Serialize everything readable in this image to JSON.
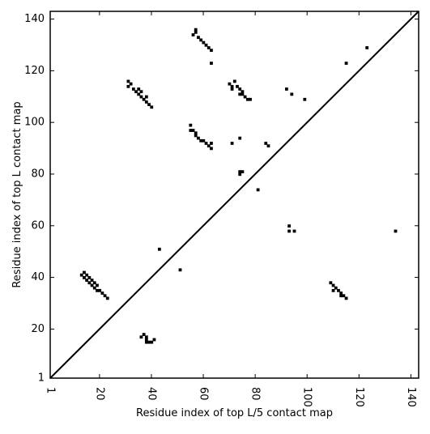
{
  "chart_data": {
    "type": "scatter",
    "title": "",
    "xlabel": "Residue index of top L/5 contact map",
    "ylabel": "Residue index of top L contact map",
    "xlim": [
      1,
      143
    ],
    "ylim": [
      1,
      143
    ],
    "x_ticks": [
      1,
      20,
      40,
      60,
      80,
      100,
      120,
      140
    ],
    "y_ticks": [
      1,
      20,
      40,
      60,
      80,
      100,
      120,
      140
    ],
    "x_tick_labels": [
      "1",
      "20",
      "40",
      "60",
      "80",
      "100",
      "120",
      "140"
    ],
    "y_tick_labels": [
      "1",
      "20",
      "40",
      "60",
      "80",
      "100",
      "120",
      "140"
    ],
    "x_tick_label_rotation": 90,
    "marker": "square",
    "point_color": "#000000",
    "diagonal_line": true,
    "grid": false,
    "points": [
      [
        13,
        41
      ],
      [
        14,
        40
      ],
      [
        14,
        42
      ],
      [
        15,
        39
      ],
      [
        15,
        41
      ],
      [
        16,
        38
      ],
      [
        16,
        40
      ],
      [
        17,
        37
      ],
      [
        17,
        39
      ],
      [
        18,
        36
      ],
      [
        18,
        38
      ],
      [
        19,
        35
      ],
      [
        19,
        37
      ],
      [
        20,
        35
      ],
      [
        21,
        34
      ],
      [
        22,
        33
      ],
      [
        23,
        32
      ],
      [
        36,
        17
      ],
      [
        37,
        18
      ],
      [
        38,
        17
      ],
      [
        38,
        16
      ],
      [
        38,
        15
      ],
      [
        39,
        15
      ],
      [
        40,
        15
      ],
      [
        41,
        16
      ],
      [
        31,
        116
      ],
      [
        31,
        114
      ],
      [
        32,
        115
      ],
      [
        33,
        113
      ],
      [
        34,
        112
      ],
      [
        35,
        111
      ],
      [
        35,
        113
      ],
      [
        36,
        110
      ],
      [
        36,
        112
      ],
      [
        37,
        109
      ],
      [
        38,
        110
      ],
      [
        38,
        108
      ],
      [
        39,
        107
      ],
      [
        40,
        106
      ],
      [
        56,
        134
      ],
      [
        57,
        135
      ],
      [
        57,
        136
      ],
      [
        58,
        133
      ],
      [
        59,
        132
      ],
      [
        60,
        131
      ],
      [
        61,
        130
      ],
      [
        62,
        129
      ],
      [
        63,
        128
      ],
      [
        63,
        123
      ],
      [
        55,
        99
      ],
      [
        55,
        97
      ],
      [
        56,
        97
      ],
      [
        57,
        96
      ],
      [
        57,
        95
      ],
      [
        58,
        94
      ],
      [
        59,
        93
      ],
      [
        60,
        93
      ],
      [
        61,
        92
      ],
      [
        62,
        91
      ],
      [
        63,
        90
      ],
      [
        63,
        92
      ],
      [
        70,
        115
      ],
      [
        71,
        114
      ],
      [
        71,
        113
      ],
      [
        72,
        116
      ],
      [
        73,
        114
      ],
      [
        74,
        113
      ],
      [
        74,
        111
      ],
      [
        75,
        112
      ],
      [
        75,
        111
      ],
      [
        76,
        110
      ],
      [
        77,
        109
      ],
      [
        78,
        109
      ],
      [
        71,
        92
      ],
      [
        74,
        94
      ],
      [
        74,
        81
      ],
      [
        74,
        80
      ],
      [
        75,
        81
      ],
      [
        81,
        74
      ],
      [
        84,
        92
      ],
      [
        85,
        91
      ],
      [
        43,
        51
      ],
      [
        51,
        43
      ],
      [
        92,
        113
      ],
      [
        94,
        111
      ],
      [
        99,
        109
      ],
      [
        115,
        123
      ],
      [
        123,
        129
      ],
      [
        93,
        60
      ],
      [
        93,
        58
      ],
      [
        95,
        58
      ],
      [
        134,
        58
      ],
      [
        109,
        38
      ],
      [
        110,
        37
      ],
      [
        110,
        35
      ],
      [
        111,
        36
      ],
      [
        112,
        35
      ],
      [
        113,
        34
      ],
      [
        113,
        33
      ],
      [
        114,
        33
      ],
      [
        115,
        32
      ]
    ]
  }
}
